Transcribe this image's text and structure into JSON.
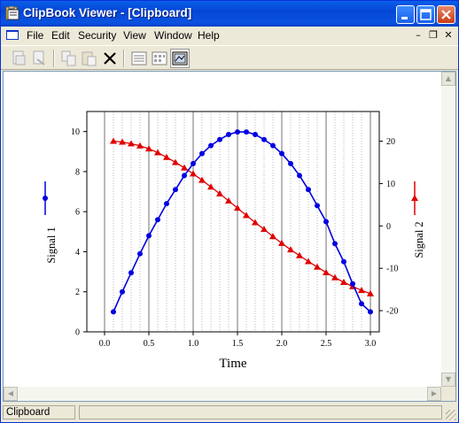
{
  "window": {
    "title": "ClipBook Viewer - [Clipboard]"
  },
  "menu": {
    "items": [
      "File",
      "Edit",
      "Security",
      "View",
      "Window",
      "Help"
    ]
  },
  "toolbar": {
    "buttons": [
      "connect-icon",
      "disconnect-icon",
      "copy-icon",
      "paste-icon",
      "delete-icon",
      "table-of-contents-icon",
      "thumbnails-icon",
      "full-page-icon"
    ]
  },
  "status": {
    "text": "Clipboard"
  },
  "chart_data": {
    "type": "line",
    "title": "",
    "xlabel": "Time",
    "ylabel_left": "Signal 1",
    "ylabel_right": "Signal 2",
    "xlim": [
      -0.2,
      3.1
    ],
    "ylim_left": [
      0,
      11
    ],
    "ylim_right": [
      -25,
      27
    ],
    "x_ticks": [
      "0.0",
      "0.5",
      "1.0",
      "1.5",
      "2.0",
      "2.5",
      "3.0"
    ],
    "y_ticks_left": [
      "0",
      "2",
      "4",
      "6",
      "8",
      "10"
    ],
    "y_ticks_right": [
      "-20",
      "-10",
      "0",
      "10",
      "20"
    ],
    "grid": "vertical",
    "series": [
      {
        "name": "Signal 1",
        "axis": "left",
        "color": "#0000e0",
        "marker": "circle",
        "x": [
          0.1,
          0.2,
          0.3,
          0.4,
          0.5,
          0.6,
          0.7,
          0.8,
          0.9,
          1.0,
          1.1,
          1.2,
          1.3,
          1.4,
          1.5,
          1.6,
          1.7,
          1.8,
          1.9,
          2.0,
          2.1,
          2.2,
          2.3,
          2.4,
          2.5,
          2.6,
          2.7,
          2.8,
          2.9,
          3.0
        ],
        "values": [
          1.0,
          2.0,
          2.95,
          3.9,
          4.8,
          5.6,
          6.4,
          7.1,
          7.8,
          8.4,
          8.9,
          9.3,
          9.6,
          9.85,
          9.98,
          9.98,
          9.85,
          9.6,
          9.3,
          8.9,
          8.4,
          7.8,
          7.1,
          6.3,
          5.5,
          4.4,
          3.5,
          2.4,
          1.4,
          1.0
        ]
      },
      {
        "name": "Signal 2",
        "axis": "right",
        "color": "#e00000",
        "marker": "triangle",
        "x": [
          0.1,
          0.2,
          0.3,
          0.4,
          0.5,
          0.6,
          0.7,
          0.8,
          0.9,
          1.0,
          1.1,
          1.2,
          1.3,
          1.4,
          1.5,
          1.6,
          1.7,
          1.8,
          1.9,
          2.0,
          2.1,
          2.2,
          2.3,
          2.4,
          2.5,
          2.6,
          2.7,
          2.8,
          2.9,
          3.0
        ],
        "values": [
          20,
          19.8,
          19.4,
          18.9,
          18.2,
          17.3,
          16.2,
          15.0,
          13.7,
          12.3,
          10.8,
          9.2,
          7.6,
          5.9,
          4.2,
          2.5,
          0.8,
          -0.8,
          -2.5,
          -4.1,
          -5.6,
          -7.0,
          -8.4,
          -9.7,
          -11.0,
          -12.2,
          -13.3,
          -14.3,
          -15.2,
          -16.0
        ]
      }
    ]
  }
}
